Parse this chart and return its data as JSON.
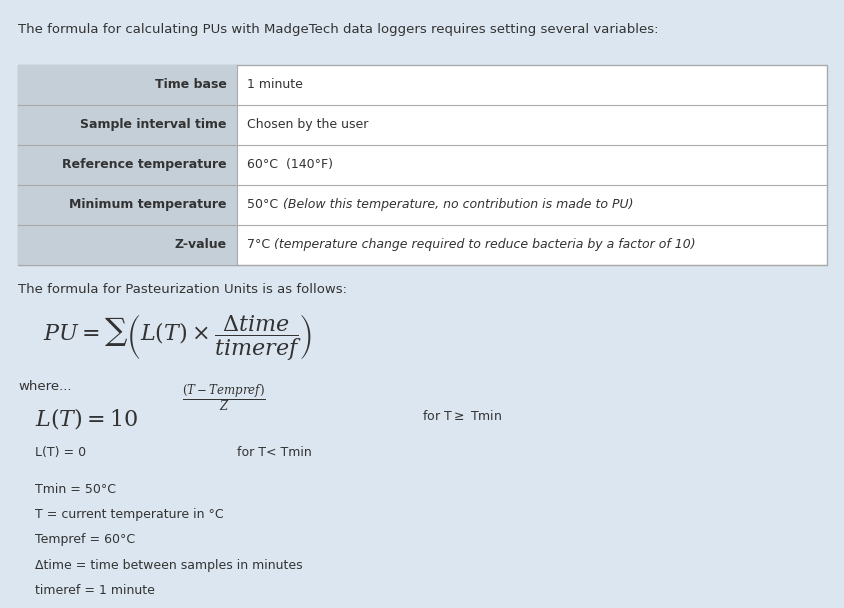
{
  "bg_color": "#dce6f0",
  "table_header_bg": "#c5cfd8",
  "table_row_bg": "#ffffff",
  "table_border_color": "#aaaaaa",
  "text_color": "#333333",
  "header_text": "The formula for calculating PUs with MadgeTech data loggers requires setting several variables:",
  "table_rows": [
    [
      "Time base",
      "1 minute"
    ],
    [
      "Sample interval time",
      "Chosen by the user"
    ],
    [
      "Reference temperature",
      "60°C  (140°F)"
    ],
    [
      "Minimum temperature",
      "50°C (Below this temperature, no contribution is made to PU)"
    ],
    [
      "Z-value",
      "7°C (temperature change required to reduce bacteria by a factor of 10)"
    ]
  ],
  "formula_intro": "The formula for Pasteurization Units is as follows:",
  "where_text": "where...",
  "variables_text": [
    "Tmin = 50°C",
    "T = current temperature in °C",
    "Tempref = 60°C",
    "Δtime = time between samples in minutes",
    "timeref = 1 minute"
  ]
}
